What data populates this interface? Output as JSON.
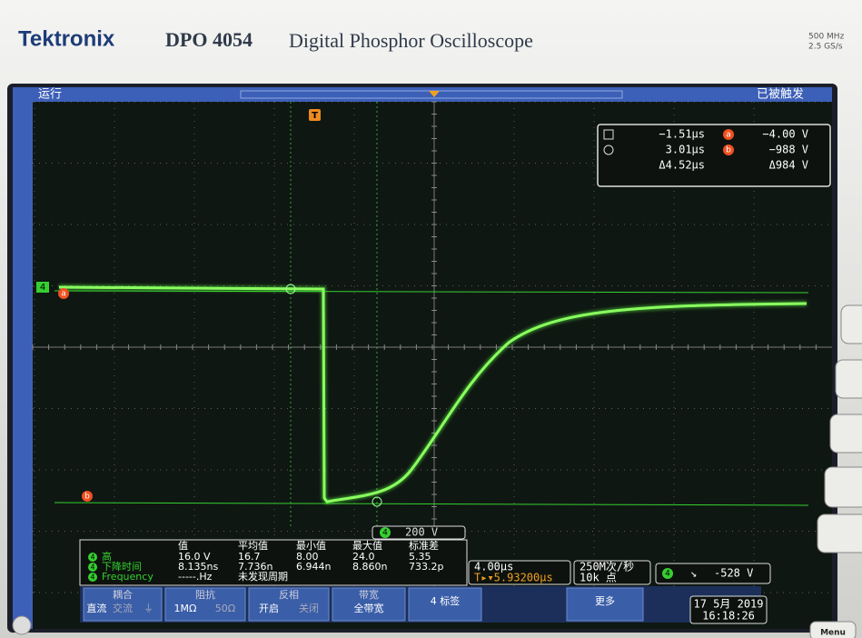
{
  "header": {
    "brand": "Tektronix",
    "model": "DPO 4054",
    "product": "Digital Phosphor Oscilloscope",
    "bandwidth": "500 MHz",
    "sample_rate": "2.5 GS/s"
  },
  "status": {
    "run": "运行",
    "trigger_state": "已被触发"
  },
  "markers": {
    "trigger": "T",
    "channel": "4",
    "cursor_a": "a",
    "cursor_b": "b"
  },
  "cursor_readout": {
    "rows": [
      {
        "time": "−1.51µs",
        "tag": "a",
        "volts": "−4.00 V"
      },
      {
        "time": "3.01µs",
        "tag": "b",
        "volts": "−988 V"
      },
      {
        "time": "Δ4.52µs",
        "volts": "Δ984 V"
      }
    ]
  },
  "channel_scale": {
    "channel": "4",
    "scale": "200 V"
  },
  "measurements": {
    "headers": [
      "值",
      "平均值",
      "最小值",
      "最大值",
      "标准差"
    ],
    "rows": [
      {
        "channel": "4",
        "name": "高",
        "cells": [
          "16.0 V",
          "16.7",
          "8.00",
          "24.0",
          "5.35"
        ]
      },
      {
        "channel": "4",
        "name": "下降时间",
        "cells": [
          "8.135ns",
          "7.736n",
          "6.944n",
          "8.860n",
          "733.2p"
        ]
      },
      {
        "channel": "4",
        "name": "Frequency",
        "cells": [
          "-----.Hz",
          "未发现周期"
        ]
      }
    ]
  },
  "timebase": {
    "scale": "4.00µs",
    "position": "T▸▾5.93200µs",
    "rate": "250M次/秒",
    "points": "10k 点"
  },
  "trigger": {
    "channel": "4",
    "slope": "↘",
    "level": "-528 V"
  },
  "menu": [
    {
      "title": "耦合",
      "options": [
        "直流",
        "交流",
        "⏚"
      ]
    },
    {
      "title": "阻抗",
      "options": [
        "1MΩ",
        "50Ω"
      ]
    },
    {
      "title": "反相",
      "options": [
        "开启",
        "关闭"
      ]
    },
    {
      "title": "带宽",
      "options": [
        "全带宽"
      ]
    },
    {
      "title": "",
      "options": [
        "4 标签"
      ]
    },
    {
      "title": "",
      "options": [
        "更多"
      ]
    }
  ],
  "datetime": {
    "date": "17 5月 2019",
    "time": "16:18:26"
  },
  "bezel": {
    "menu_button": "Menu"
  }
}
